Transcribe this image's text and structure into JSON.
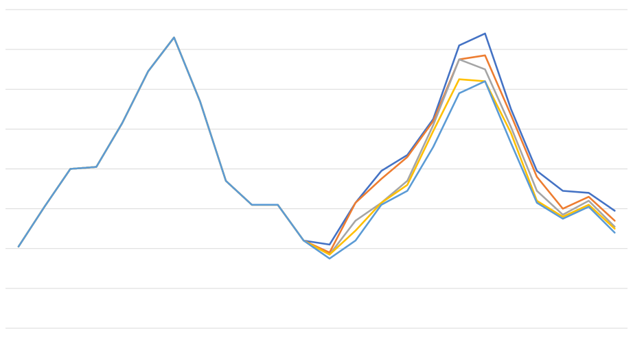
{
  "chart_data": {
    "type": "line",
    "title": "",
    "xlabel": "",
    "ylabel": "",
    "ylim": [
      0,
      8
    ],
    "grid": true,
    "legend": "none",
    "y_gridlines": [
      0,
      1,
      2,
      3,
      4,
      5,
      6,
      7,
      8
    ],
    "x": [
      1,
      2,
      3,
      4,
      5,
      6,
      7,
      8,
      9,
      10,
      11,
      12,
      13,
      14,
      15,
      16,
      17,
      18,
      19,
      20,
      21,
      22,
      23,
      24
    ],
    "series": [
      {
        "color": "#4472c4",
        "values": [
          2.05,
          3.05,
          4.0,
          4.05,
          5.15,
          6.45,
          7.3,
          5.7,
          3.7,
          3.1,
          3.1,
          2.2,
          2.1,
          3.15,
          3.95,
          4.35,
          5.25,
          7.1,
          7.4,
          5.5,
          3.95,
          3.45,
          3.4,
          2.95
        ]
      },
      {
        "color": "#ed7d31",
        "values": [
          2.05,
          3.05,
          4.0,
          4.05,
          5.15,
          6.45,
          7.3,
          5.7,
          3.7,
          3.1,
          3.1,
          2.2,
          1.9,
          3.15,
          3.75,
          4.3,
          5.2,
          6.75,
          6.85,
          5.35,
          3.8,
          3.0,
          3.3,
          2.7
        ]
      },
      {
        "color": "#a5a5a5",
        "values": [
          2.05,
          3.05,
          4.0,
          4.05,
          5.15,
          6.45,
          7.3,
          5.7,
          3.7,
          3.1,
          3.1,
          2.2,
          1.85,
          2.7,
          3.15,
          3.7,
          5.1,
          6.75,
          6.5,
          5.05,
          3.45,
          2.85,
          3.2,
          2.55
        ]
      },
      {
        "color": "#ffc000",
        "values": [
          2.05,
          3.05,
          4.0,
          4.05,
          5.15,
          6.45,
          7.3,
          5.7,
          3.7,
          3.1,
          3.1,
          2.2,
          1.85,
          2.45,
          3.15,
          3.6,
          4.95,
          6.25,
          6.2,
          4.9,
          3.2,
          2.8,
          3.1,
          2.5
        ]
      },
      {
        "color": "#5b9bd5",
        "values": [
          2.05,
          3.05,
          4.0,
          4.05,
          5.15,
          6.45,
          7.3,
          5.7,
          3.7,
          3.1,
          3.1,
          2.2,
          1.75,
          2.2,
          3.1,
          3.45,
          4.55,
          5.9,
          6.2,
          4.65,
          3.15,
          2.75,
          3.05,
          2.4
        ]
      }
    ]
  }
}
